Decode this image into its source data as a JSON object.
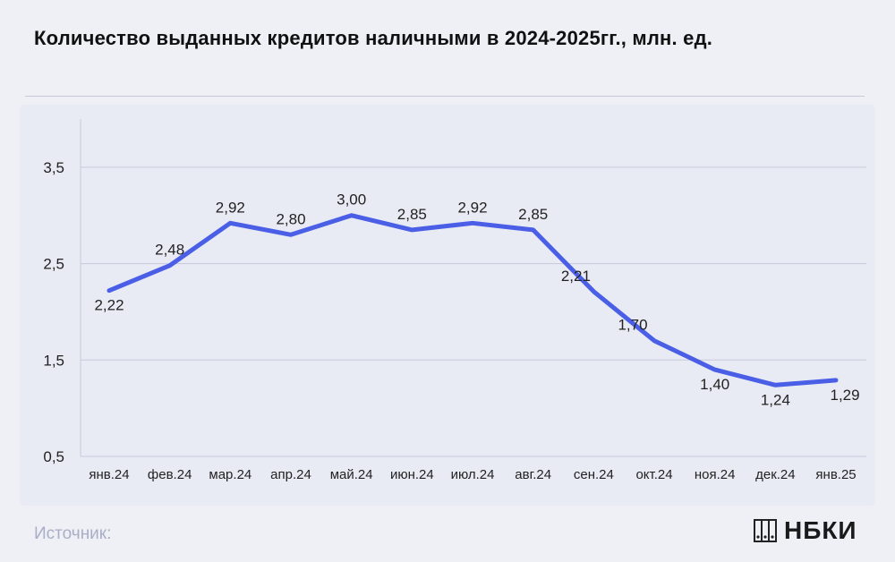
{
  "title": "Количество выданных кредитов наличными в 2024-2025гг., млн. ед.",
  "footer": {
    "source_label": "Источник:",
    "logo_text": "НБКИ"
  },
  "colors": {
    "line": "#4a5fe6",
    "grid": "#c5c9dc",
    "background": "#eef0f6"
  },
  "chart_data": {
    "type": "line",
    "title": "Количество выданных кредитов наличными в 2024-2025гг., млн. ед.",
    "xlabel": "",
    "ylabel": "",
    "categories": [
      "янв.24",
      "фев.24",
      "мар.24",
      "апр.24",
      "май.24",
      "июн.24",
      "июл.24",
      "авг.24",
      "сен.24",
      "окт.24",
      "ноя.24",
      "дек.24",
      "янв.25"
    ],
    "series": [
      {
        "values": [
          2.22,
          2.48,
          2.92,
          2.8,
          3.0,
          2.85,
          2.92,
          2.85,
          2.21,
          1.7,
          1.4,
          1.24,
          1.29
        ]
      }
    ],
    "data_labels": [
      "2,22",
      "2,48",
      "2,92",
      "2,80",
      "3,00",
      "2,85",
      "2,92",
      "2,85",
      "2,21",
      "1,70",
      "1,40",
      "1,24",
      "1,29"
    ],
    "ylim": [
      0.5,
      4.0
    ],
    "yticks": [
      0.5,
      1.5,
      2.5,
      3.5
    ],
    "ytick_labels": [
      "0,5",
      "1,5",
      "2,5",
      "3,5"
    ],
    "grid": true,
    "legend": "none"
  }
}
